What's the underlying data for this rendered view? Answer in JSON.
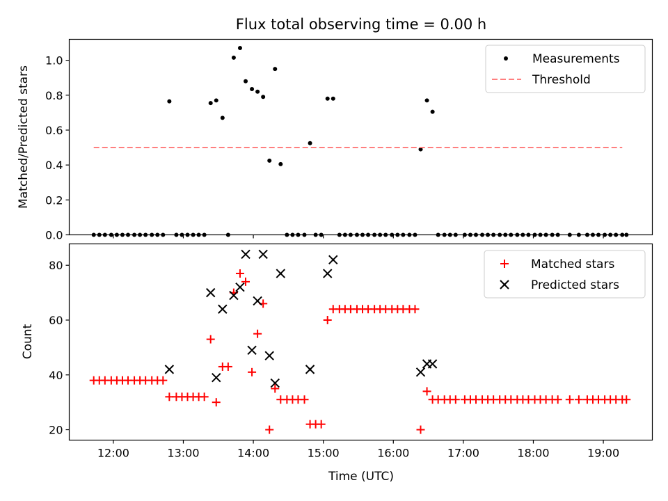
{
  "chart_data": [
    {
      "panel": "top",
      "type": "scatter",
      "title": "Flux total observing time = 0.00 h",
      "xlabel": "",
      "ylabel": "Matched/Predicted stars",
      "xlim": [
        11.37,
        19.7
      ],
      "ylim": [
        0,
        1.12
      ],
      "yticks": [
        0.0,
        0.2,
        0.4,
        0.6,
        0.8,
        1.0
      ],
      "ytick_labels": [
        "0.0",
        "0.2",
        "0.4",
        "0.6",
        "0.8",
        "1.0"
      ],
      "grid": false,
      "legend_position": "top-right",
      "series": [
        {
          "name": "Measurements",
          "marker": "dot",
          "color": "#000000",
          "points": [
            [
              11.72,
              0
            ],
            [
              11.8,
              0
            ],
            [
              11.88,
              0
            ],
            [
              11.97,
              0
            ],
            [
              12.05,
              0
            ],
            [
              12.13,
              0
            ],
            [
              12.21,
              0
            ],
            [
              12.3,
              0
            ],
            [
              12.38,
              0
            ],
            [
              12.46,
              0
            ],
            [
              12.55,
              0
            ],
            [
              12.63,
              0
            ],
            [
              12.71,
              0
            ],
            [
              12.8,
              0.765
            ],
            [
              12.9,
              0
            ],
            [
              12.98,
              0
            ],
            [
              13.06,
              0
            ],
            [
              13.14,
              0
            ],
            [
              13.22,
              0
            ],
            [
              13.3,
              0
            ],
            [
              13.39,
              0.755
            ],
            [
              13.47,
              0.77
            ],
            [
              13.56,
              0.67
            ],
            [
              13.64,
              0
            ],
            [
              13.72,
              1.015
            ],
            [
              13.81,
              1.07
            ],
            [
              13.89,
              0.88
            ],
            [
              13.98,
              0.835
            ],
            [
              14.06,
              0.82
            ],
            [
              14.14,
              0.79
            ],
            [
              14.23,
              0.425
            ],
            [
              14.31,
              0.95
            ],
            [
              14.39,
              0.405
            ],
            [
              14.48,
              0
            ],
            [
              14.56,
              0
            ],
            [
              14.64,
              0
            ],
            [
              14.73,
              0
            ],
            [
              14.81,
              0.525
            ],
            [
              14.89,
              0
            ],
            [
              14.97,
              0
            ],
            [
              15.06,
              0.78
            ],
            [
              15.14,
              0.78
            ],
            [
              15.23,
              0
            ],
            [
              15.31,
              0
            ],
            [
              15.39,
              0
            ],
            [
              15.48,
              0
            ],
            [
              15.56,
              0
            ],
            [
              15.64,
              0
            ],
            [
              15.73,
              0
            ],
            [
              15.81,
              0
            ],
            [
              15.89,
              0
            ],
            [
              15.98,
              0
            ],
            [
              16.06,
              0
            ],
            [
              16.14,
              0
            ],
            [
              16.23,
              0
            ],
            [
              16.31,
              0
            ],
            [
              16.39,
              0.49
            ],
            [
              16.48,
              0.77
            ],
            [
              16.56,
              0.705
            ],
            [
              16.64,
              0
            ],
            [
              16.73,
              0
            ],
            [
              16.81,
              0
            ],
            [
              16.89,
              0
            ],
            [
              17.02,
              0
            ],
            [
              17.1,
              0
            ],
            [
              17.18,
              0
            ],
            [
              17.27,
              0
            ],
            [
              17.35,
              0
            ],
            [
              17.43,
              0
            ],
            [
              17.52,
              0
            ],
            [
              17.6,
              0
            ],
            [
              17.68,
              0
            ],
            [
              17.77,
              0
            ],
            [
              17.85,
              0
            ],
            [
              17.93,
              0
            ],
            [
              18.02,
              0
            ],
            [
              18.1,
              0
            ],
            [
              18.18,
              0
            ],
            [
              18.27,
              0
            ],
            [
              18.35,
              0
            ],
            [
              18.52,
              0
            ],
            [
              18.65,
              0
            ],
            [
              18.77,
              0
            ],
            [
              18.85,
              0
            ],
            [
              18.93,
              0
            ],
            [
              19.02,
              0
            ],
            [
              19.1,
              0
            ],
            [
              19.18,
              0
            ],
            [
              19.27,
              0
            ],
            [
              19.33,
              0
            ]
          ]
        },
        {
          "name": "Threshold",
          "style": "dashed-line",
          "color": "#ff7f7f",
          "points": [
            [
              11.72,
              0.5
            ],
            [
              19.27,
              0.5
            ]
          ]
        }
      ]
    },
    {
      "panel": "bottom",
      "type": "scatter",
      "title": "",
      "xlabel": "Time (UTC)",
      "ylabel": "Count",
      "xlim": [
        11.37,
        19.7
      ],
      "ylim": [
        16.2,
        87.8
      ],
      "yticks": [
        20,
        40,
        60,
        80
      ],
      "ytick_labels": [
        "20",
        "40",
        "60",
        "80"
      ],
      "xticks": [
        12,
        13,
        14,
        15,
        16,
        17,
        18,
        19
      ],
      "xtick_labels": [
        "12:00",
        "13:00",
        "14:00",
        "15:00",
        "16:00",
        "17:00",
        "18:00",
        "19:00"
      ],
      "grid": false,
      "legend_position": "top-right",
      "series": [
        {
          "name": "Matched stars",
          "marker": "plus",
          "color": "#ff0000",
          "points": [
            [
              11.72,
              38
            ],
            [
              11.8,
              38
            ],
            [
              11.88,
              38
            ],
            [
              11.97,
              38
            ],
            [
              12.05,
              38
            ],
            [
              12.13,
              38
            ],
            [
              12.21,
              38
            ],
            [
              12.3,
              38
            ],
            [
              12.38,
              38
            ],
            [
              12.46,
              38
            ],
            [
              12.55,
              38
            ],
            [
              12.63,
              38
            ],
            [
              12.71,
              38
            ],
            [
              12.8,
              32
            ],
            [
              12.9,
              32
            ],
            [
              12.98,
              32
            ],
            [
              13.06,
              32
            ],
            [
              13.14,
              32
            ],
            [
              13.22,
              32
            ],
            [
              13.3,
              32
            ],
            [
              13.39,
              53
            ],
            [
              13.47,
              30
            ],
            [
              13.56,
              43
            ],
            [
              13.64,
              43
            ],
            [
              13.72,
              70
            ],
            [
              13.81,
              77
            ],
            [
              13.89,
              74
            ],
            [
              13.98,
              41
            ],
            [
              14.06,
              55
            ],
            [
              14.14,
              66
            ],
            [
              14.23,
              20
            ],
            [
              14.31,
              35
            ],
            [
              14.39,
              31
            ],
            [
              14.48,
              31
            ],
            [
              14.56,
              31
            ],
            [
              14.64,
              31
            ],
            [
              14.73,
              31
            ],
            [
              14.81,
              22
            ],
            [
              14.89,
              22
            ],
            [
              14.97,
              22
            ],
            [
              15.06,
              60
            ],
            [
              15.14,
              64
            ],
            [
              15.23,
              64
            ],
            [
              15.31,
              64
            ],
            [
              15.39,
              64
            ],
            [
              15.48,
              64
            ],
            [
              15.56,
              64
            ],
            [
              15.64,
              64
            ],
            [
              15.73,
              64
            ],
            [
              15.81,
              64
            ],
            [
              15.89,
              64
            ],
            [
              15.98,
              64
            ],
            [
              16.06,
              64
            ],
            [
              16.14,
              64
            ],
            [
              16.23,
              64
            ],
            [
              16.31,
              64
            ],
            [
              16.39,
              20
            ],
            [
              16.48,
              34
            ],
            [
              16.56,
              31
            ],
            [
              16.64,
              31
            ],
            [
              16.73,
              31
            ],
            [
              16.81,
              31
            ],
            [
              16.89,
              31
            ],
            [
              17.02,
              31
            ],
            [
              17.1,
              31
            ],
            [
              17.18,
              31
            ],
            [
              17.27,
              31
            ],
            [
              17.35,
              31
            ],
            [
              17.43,
              31
            ],
            [
              17.52,
              31
            ],
            [
              17.6,
              31
            ],
            [
              17.68,
              31
            ],
            [
              17.77,
              31
            ],
            [
              17.85,
              31
            ],
            [
              17.93,
              31
            ],
            [
              18.02,
              31
            ],
            [
              18.1,
              31
            ],
            [
              18.18,
              31
            ],
            [
              18.27,
              31
            ],
            [
              18.35,
              31
            ],
            [
              18.52,
              31
            ],
            [
              18.65,
              31
            ],
            [
              18.77,
              31
            ],
            [
              18.85,
              31
            ],
            [
              18.93,
              31
            ],
            [
              19.02,
              31
            ],
            [
              19.1,
              31
            ],
            [
              19.18,
              31
            ],
            [
              19.27,
              31
            ],
            [
              19.33,
              31
            ]
          ]
        },
        {
          "name": "Predicted stars",
          "marker": "x",
          "color": "#000000",
          "points": [
            [
              12.8,
              42
            ],
            [
              13.39,
              70
            ],
            [
              13.47,
              39
            ],
            [
              13.56,
              64
            ],
            [
              13.72,
              69
            ],
            [
              13.81,
              72
            ],
            [
              13.89,
              84
            ],
            [
              13.98,
              49
            ],
            [
              14.06,
              67
            ],
            [
              14.14,
              84
            ],
            [
              14.23,
              47
            ],
            [
              14.31,
              37
            ],
            [
              14.39,
              77
            ],
            [
              14.81,
              42
            ],
            [
              15.06,
              77
            ],
            [
              15.14,
              82
            ],
            [
              16.39,
              41
            ],
            [
              16.48,
              44
            ],
            [
              16.56,
              44
            ]
          ]
        }
      ]
    }
  ]
}
